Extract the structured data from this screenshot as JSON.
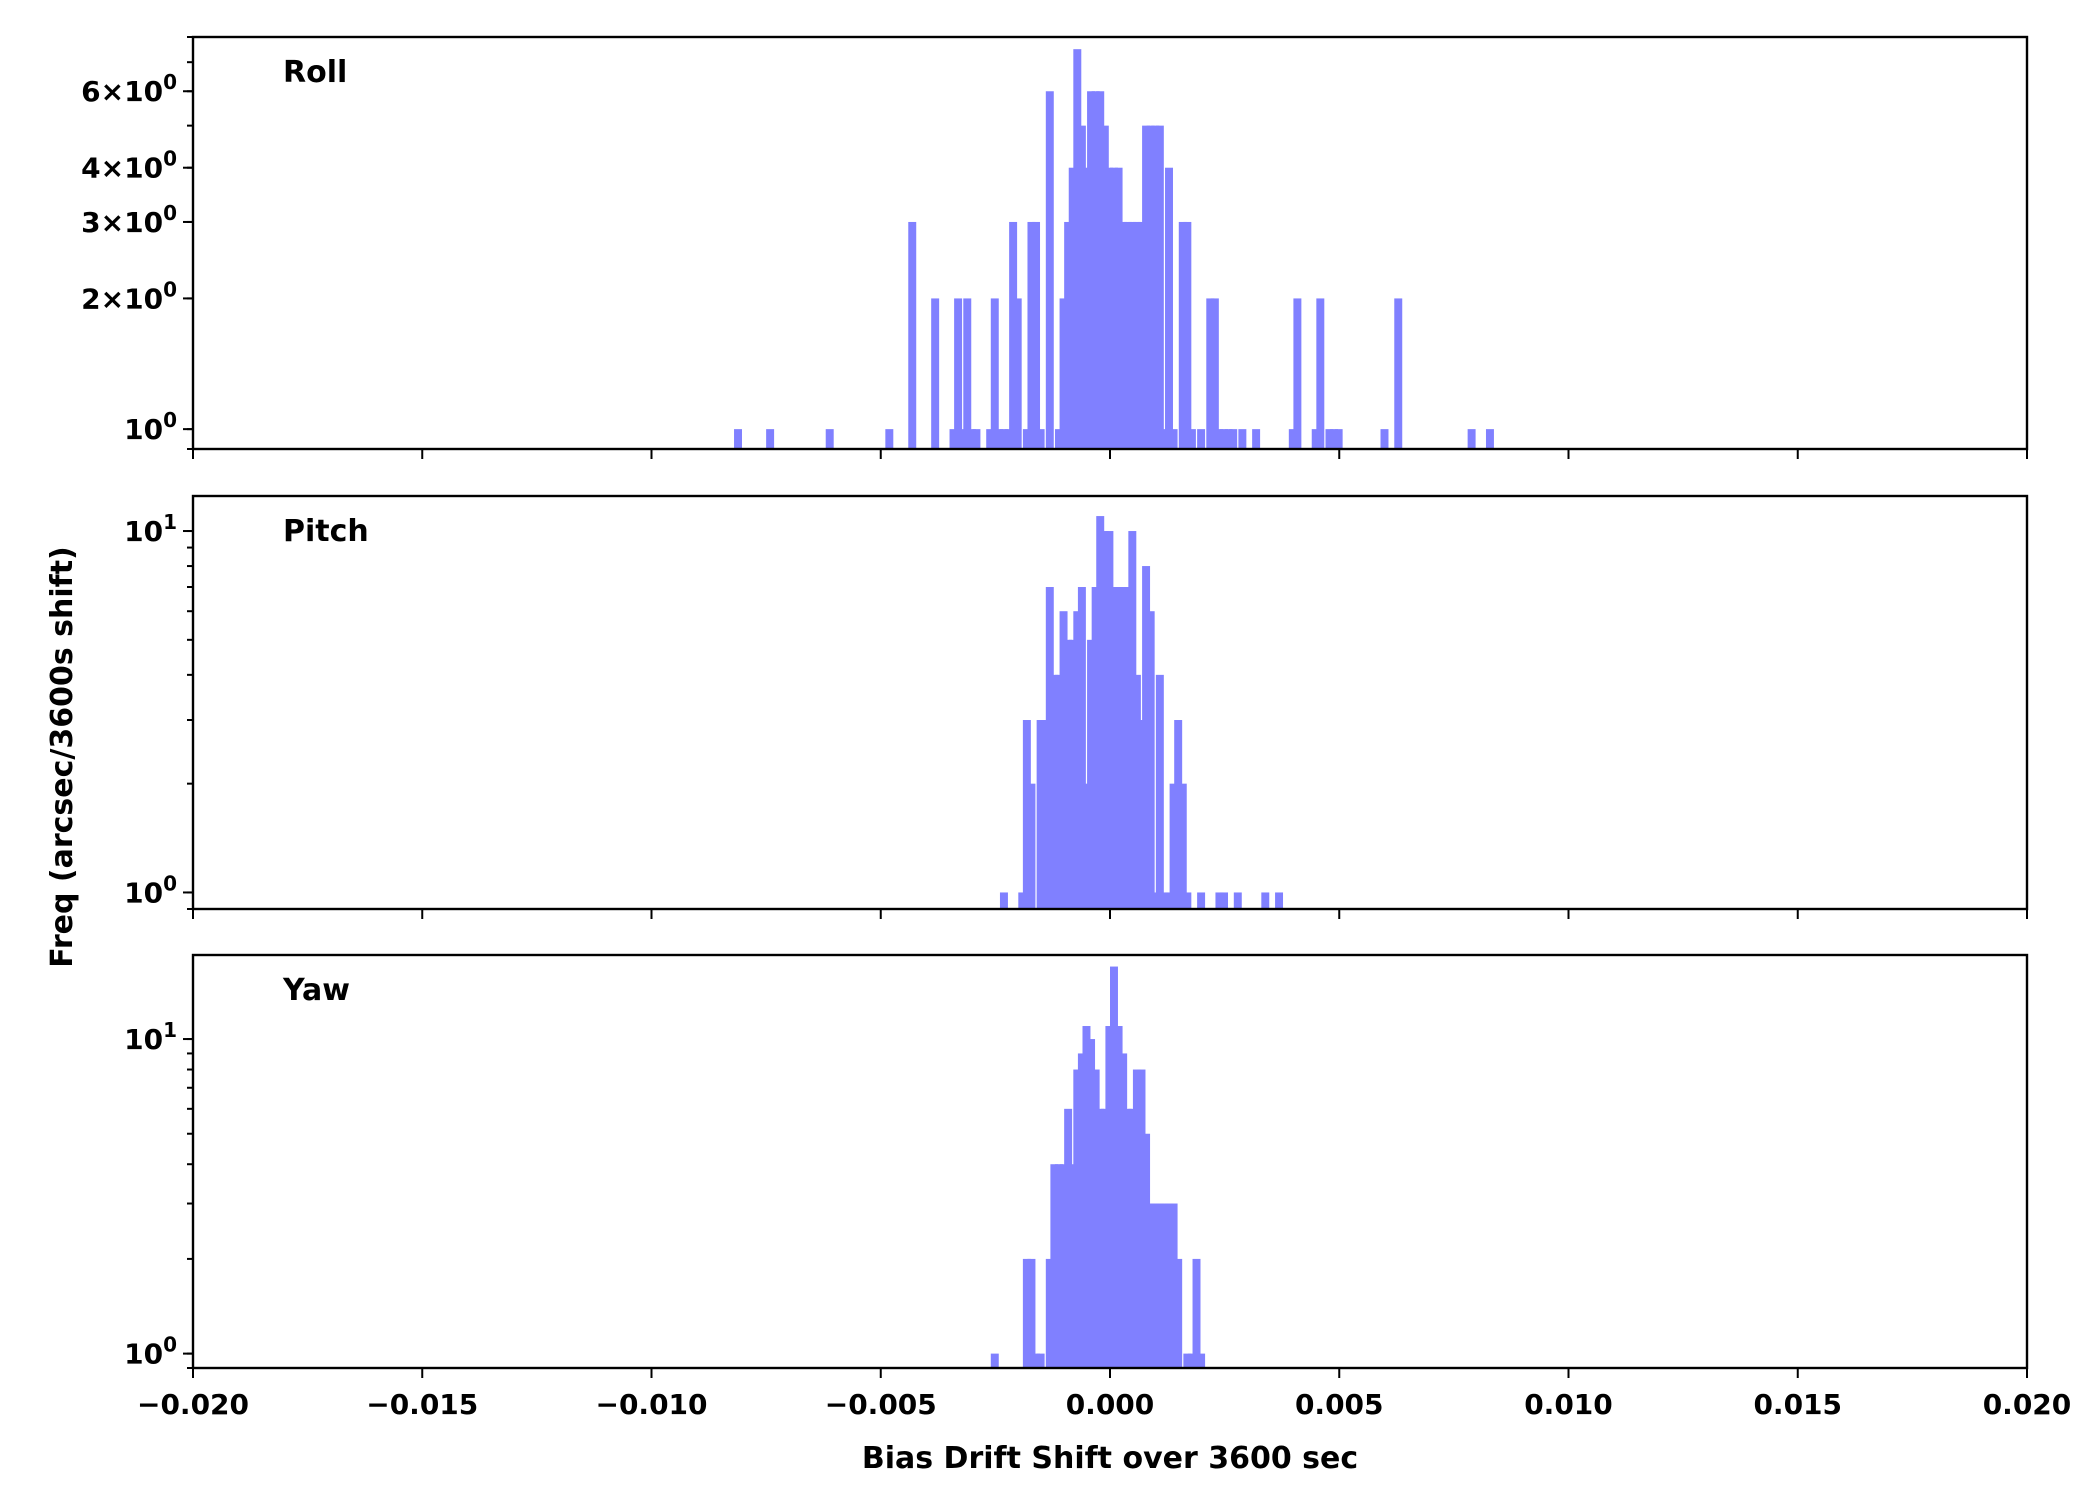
{
  "chart_data": {
    "type": "bar",
    "xlabel": "Bias Drift Shift over 3600 sec",
    "ylabel": "Freq (arcsec/3600s shift)",
    "xlim": [
      -0.02,
      0.02
    ],
    "x_ticks": [
      "−0.020",
      "−0.015",
      "−0.010",
      "−0.005",
      "0.000",
      "0.005",
      "0.010",
      "0.015",
      "0.020"
    ],
    "y_scale": "log",
    "bin_width": 0.0002,
    "bar_color": "#8080ff",
    "panels": [
      {
        "label": "Roll",
        "ylim": [
          0.9,
          8.0
        ],
        "y_ticks": [
          {
            "value": 1,
            "mantissa": "",
            "exp": "0"
          },
          {
            "value": 2,
            "mantissa": "2×",
            "exp": "0"
          },
          {
            "value": 3,
            "mantissa": "3×",
            "exp": "0"
          },
          {
            "value": 4,
            "mantissa": "4×",
            "exp": "0"
          },
          {
            "value": 6,
            "mantissa": "6×",
            "exp": "0"
          }
        ],
        "bins": [
          [
            -0.0082,
            1
          ],
          [
            -0.0075,
            1
          ],
          [
            -0.0062,
            1
          ],
          [
            -0.0049,
            1
          ],
          [
            -0.0044,
            3
          ],
          [
            -0.0039,
            2
          ],
          [
            -0.0035,
            1
          ],
          [
            -0.0034,
            2
          ],
          [
            -0.0033,
            1
          ],
          [
            -0.0032,
            2
          ],
          [
            -0.0031,
            1
          ],
          [
            -0.003,
            1
          ],
          [
            -0.0027,
            1
          ],
          [
            -0.0026,
            2
          ],
          [
            -0.0025,
            1
          ],
          [
            -0.0024,
            1
          ],
          [
            -0.0023,
            1
          ],
          [
            -0.0022,
            3
          ],
          [
            -0.0021,
            2
          ],
          [
            -0.0019,
            1
          ],
          [
            -0.0018,
            3
          ],
          [
            -0.0017,
            3
          ],
          [
            -0.0016,
            1
          ],
          [
            -0.0014,
            6
          ],
          [
            -0.0012,
            1
          ],
          [
            -0.0011,
            2
          ],
          [
            -0.001,
            3
          ],
          [
            -0.0009,
            4
          ],
          [
            -0.0008,
            7.5
          ],
          [
            -0.0007,
            5
          ],
          [
            -0.0006,
            4
          ],
          [
            -0.0005,
            6
          ],
          [
            -0.0004,
            6
          ],
          [
            -0.0003,
            6
          ],
          [
            -0.0002,
            5
          ],
          [
            -0.0001,
            4
          ],
          [
            0.0,
            4
          ],
          [
            0.0001,
            4
          ],
          [
            0.0002,
            3
          ],
          [
            0.0003,
            3
          ],
          [
            0.0004,
            3
          ],
          [
            0.0005,
            3
          ],
          [
            0.0006,
            3
          ],
          [
            0.0007,
            5
          ],
          [
            0.0008,
            5
          ],
          [
            0.0009,
            5
          ],
          [
            0.001,
            5
          ],
          [
            0.0011,
            1
          ],
          [
            0.0012,
            4
          ],
          [
            0.0013,
            1
          ],
          [
            0.0015,
            3
          ],
          [
            0.0016,
            3
          ],
          [
            0.0017,
            1
          ],
          [
            0.0019,
            1
          ],
          [
            0.0021,
            2
          ],
          [
            0.0022,
            2
          ],
          [
            0.0023,
            1
          ],
          [
            0.0024,
            1
          ],
          [
            0.0025,
            1
          ],
          [
            0.0026,
            1
          ],
          [
            0.0028,
            1
          ],
          [
            0.0031,
            1
          ],
          [
            0.0039,
            1
          ],
          [
            0.004,
            2
          ],
          [
            0.0044,
            1
          ],
          [
            0.0045,
            2
          ],
          [
            0.0047,
            1
          ],
          [
            0.0048,
            1
          ],
          [
            0.0049,
            1
          ],
          [
            0.0059,
            1
          ],
          [
            0.0062,
            2
          ],
          [
            0.0078,
            1
          ],
          [
            0.0082,
            1
          ]
        ]
      },
      {
        "label": "Pitch",
        "ylim": [
          0.9,
          12.5
        ],
        "y_ticks": [
          {
            "value": 1,
            "mantissa": "",
            "exp": "0"
          },
          {
            "value": 10,
            "mantissa": "",
            "exp": "1"
          }
        ],
        "bins": [
          [
            -0.0024,
            1
          ],
          [
            -0.002,
            1
          ],
          [
            -0.0019,
            3
          ],
          [
            -0.0018,
            2
          ],
          [
            -0.0016,
            3
          ],
          [
            -0.0015,
            3
          ],
          [
            -0.0014,
            7
          ],
          [
            -0.0013,
            4
          ],
          [
            -0.0012,
            4
          ],
          [
            -0.0011,
            6
          ],
          [
            -0.001,
            5
          ],
          [
            -0.0009,
            5
          ],
          [
            -0.0008,
            6
          ],
          [
            -0.0007,
            7
          ],
          [
            -0.0006,
            2
          ],
          [
            -0.0005,
            5
          ],
          [
            -0.0004,
            7
          ],
          [
            -0.0003,
            11
          ],
          [
            -0.0002,
            10
          ],
          [
            -0.0001,
            10
          ],
          [
            0.0,
            7
          ],
          [
            0.0001,
            7
          ],
          [
            0.0002,
            7
          ],
          [
            0.0003,
            7
          ],
          [
            0.0004,
            10
          ],
          [
            0.0005,
            4
          ],
          [
            0.0006,
            3
          ],
          [
            0.0007,
            8
          ],
          [
            0.0008,
            6
          ],
          [
            0.0009,
            1
          ],
          [
            0.001,
            4
          ],
          [
            0.0011,
            1
          ],
          [
            0.0012,
            1
          ],
          [
            0.0013,
            2
          ],
          [
            0.0014,
            3
          ],
          [
            0.0015,
            2
          ],
          [
            0.0016,
            1
          ],
          [
            0.0019,
            1
          ],
          [
            0.0023,
            1
          ],
          [
            0.0024,
            1
          ],
          [
            0.0027,
            1
          ],
          [
            0.0033,
            1
          ],
          [
            0.0036,
            1
          ]
        ]
      },
      {
        "label": "Yaw",
        "ylim": [
          0.9,
          18.5
        ],
        "y_ticks": [
          {
            "value": 1,
            "mantissa": "",
            "exp": "0"
          },
          {
            "value": 10,
            "mantissa": "",
            "exp": "1"
          }
        ],
        "bins": [
          [
            -0.0026,
            1
          ],
          [
            -0.0019,
            2
          ],
          [
            -0.0018,
            2
          ],
          [
            -0.0017,
            1
          ],
          [
            -0.0016,
            1
          ],
          [
            -0.0014,
            2
          ],
          [
            -0.0013,
            4
          ],
          [
            -0.0012,
            4
          ],
          [
            -0.0011,
            4
          ],
          [
            -0.001,
            6
          ],
          [
            -0.0009,
            4
          ],
          [
            -0.0008,
            8
          ],
          [
            -0.0007,
            9
          ],
          [
            -0.0006,
            11
          ],
          [
            -0.0005,
            10
          ],
          [
            -0.0004,
            8
          ],
          [
            -0.0003,
            6
          ],
          [
            -0.0002,
            6
          ],
          [
            -0.0001,
            11
          ],
          [
            0.0,
            17
          ],
          [
            0.0001,
            11
          ],
          [
            0.0002,
            9
          ],
          [
            0.0003,
            6
          ],
          [
            0.0004,
            6
          ],
          [
            0.0005,
            8
          ],
          [
            0.0006,
            8
          ],
          [
            0.0007,
            5
          ],
          [
            0.0008,
            3
          ],
          [
            0.0009,
            3
          ],
          [
            0.001,
            3
          ],
          [
            0.0011,
            3
          ],
          [
            0.0012,
            3
          ],
          [
            0.0013,
            3
          ],
          [
            0.0014,
            2
          ],
          [
            0.0016,
            1
          ],
          [
            0.0017,
            1
          ],
          [
            0.0018,
            2
          ],
          [
            0.0019,
            1
          ]
        ]
      }
    ]
  }
}
